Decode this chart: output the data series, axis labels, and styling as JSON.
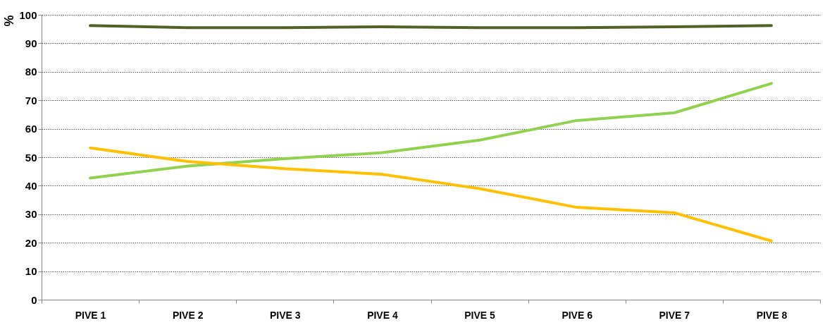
{
  "chart_data": {
    "type": "line",
    "ylabel": "%",
    "categories": [
      "PIVE 1",
      "PIVE 2",
      "PIVE 3",
      "PIVE 4",
      "PIVE 5",
      "PIVE 6",
      "PIVE 7",
      "PIVE 8"
    ],
    "series": [
      {
        "color": "#4f6228",
        "values": [
          96.2,
          95.5,
          95.5,
          95.8,
          95.5,
          95.5,
          95.8,
          96.2
        ]
      },
      {
        "color": "#92d050",
        "values": [
          42.7,
          46.9,
          49.5,
          51.6,
          56,
          62.9,
          65.6,
          75.9
        ]
      },
      {
        "color": "#ffc000",
        "values": [
          53.3,
          48.5,
          46,
          44,
          39,
          32.4,
          30.5,
          20.6
        ]
      }
    ],
    "ylim": [
      0,
      100
    ],
    "yticks": [
      0,
      10,
      20,
      30,
      40,
      50,
      60,
      70,
      80,
      90,
      100
    ],
    "grid": "y",
    "legend": false,
    "marker": "none",
    "line_style": "solid"
  }
}
